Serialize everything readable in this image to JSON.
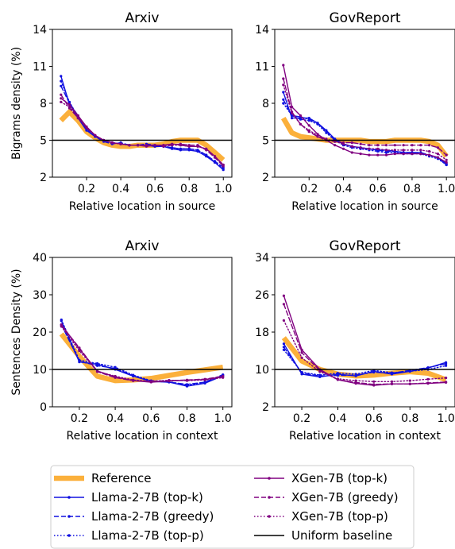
{
  "colors": {
    "reference": "#FBB03B",
    "llama": "#1010E0",
    "xgen": "#800080",
    "baseline": "#000000"
  },
  "legend": {
    "placement": "bottom-center",
    "entries": [
      {
        "label": "Reference",
        "style": "reference"
      },
      {
        "label": "Llama-2-7B (top-k)",
        "style": "llama_topk"
      },
      {
        "label": "Llama-2-7B (greedy)",
        "style": "llama_greedy"
      },
      {
        "label": "Llama-2-7B (top-p)",
        "style": "llama_topp"
      },
      {
        "label": "XGen-7B (top-k)",
        "style": "xgen_topk"
      },
      {
        "label": "XGen-7B (greedy)",
        "style": "xgen_greedy"
      },
      {
        "label": "XGen-7B (top-p)",
        "style": "xgen_topp"
      },
      {
        "label": "Uniform baseline",
        "style": "baseline"
      }
    ]
  },
  "chart_data": [
    {
      "type": "line",
      "title": "Arxiv",
      "xlabel": "Relative location in source",
      "ylabel": "Bigrams density (%)",
      "xlim": [
        0.0,
        1.05
      ],
      "ylim": [
        2,
        14
      ],
      "xticks": [
        "0.2",
        "0.4",
        "0.6",
        "0.8",
        "1.0"
      ],
      "yticks": [
        "2",
        "5",
        "8",
        "11",
        "14"
      ],
      "baseline": 5,
      "x": [
        0.05,
        0.1,
        0.15,
        0.2,
        0.25,
        0.3,
        0.35,
        0.4,
        0.45,
        0.5,
        0.55,
        0.6,
        0.65,
        0.7,
        0.75,
        0.8,
        0.85,
        0.9,
        0.95,
        1.0
      ],
      "series": [
        {
          "name": "Reference",
          "style": "reference",
          "values": [
            6.6,
            7.3,
            6.6,
            5.7,
            5.2,
            4.8,
            4.6,
            4.5,
            4.5,
            4.6,
            4.6,
            4.6,
            4.7,
            4.9,
            5.0,
            5.0,
            5.0,
            4.6,
            4.0,
            3.4
          ]
        },
        {
          "name": "Llama-2-7B (top-k)",
          "style": "llama_topk",
          "values": [
            10.2,
            7.9,
            6.8,
            5.8,
            5.3,
            5.0,
            4.8,
            4.7,
            4.6,
            4.6,
            4.6,
            4.5,
            4.5,
            4.3,
            4.2,
            4.2,
            4.1,
            3.7,
            3.2,
            2.6
          ]
        },
        {
          "name": "Llama-2-7B (greedy)",
          "style": "llama_greedy",
          "values": [
            9.4,
            8.0,
            7.0,
            6.0,
            5.3,
            4.9,
            4.7,
            4.8,
            4.6,
            4.6,
            4.7,
            4.6,
            4.5,
            4.4,
            4.3,
            4.3,
            4.2,
            3.8,
            3.3,
            2.8
          ]
        },
        {
          "name": "Llama-2-7B (top-p)",
          "style": "llama_topp",
          "values": [
            9.8,
            8.1,
            6.9,
            5.9,
            5.3,
            5.0,
            4.8,
            4.7,
            4.6,
            4.6,
            4.6,
            4.5,
            4.5,
            4.4,
            4.3,
            4.3,
            4.2,
            3.8,
            3.2,
            2.7
          ]
        },
        {
          "name": "XGen-7B (top-k)",
          "style": "xgen_topk",
          "values": [
            8.4,
            7.9,
            7.0,
            6.1,
            5.4,
            5.0,
            4.8,
            4.7,
            4.6,
            4.6,
            4.6,
            4.6,
            4.6,
            4.7,
            4.6,
            4.5,
            4.5,
            4.3,
            3.7,
            3.0
          ]
        },
        {
          "name": "XGen-7B (greedy)",
          "style": "xgen_greedy",
          "values": [
            8.7,
            7.6,
            6.8,
            6.0,
            5.4,
            5.0,
            4.8,
            4.7,
            4.6,
            4.6,
            4.5,
            4.6,
            4.5,
            4.6,
            4.7,
            4.6,
            4.6,
            4.2,
            3.6,
            2.9
          ]
        },
        {
          "name": "XGen-7B (top-p)",
          "style": "xgen_topp",
          "values": [
            8.1,
            7.7,
            6.9,
            6.0,
            5.4,
            5.0,
            4.8,
            4.7,
            4.6,
            4.6,
            4.6,
            4.6,
            4.6,
            4.6,
            4.6,
            4.5,
            4.5,
            4.3,
            3.7,
            3.0
          ]
        }
      ]
    },
    {
      "type": "line",
      "title": "GovReport",
      "xlabel": "Relative location in source",
      "ylabel": "",
      "xlim": [
        0.0,
        1.05
      ],
      "ylim": [
        2,
        14
      ],
      "xticks": [
        "0.2",
        "0.4",
        "0.6",
        "0.8",
        "1.0"
      ],
      "yticks": [
        "2",
        "5",
        "8",
        "11",
        "14"
      ],
      "baseline": 5,
      "x": [
        0.05,
        0.1,
        0.15,
        0.2,
        0.25,
        0.3,
        0.35,
        0.4,
        0.45,
        0.5,
        0.55,
        0.6,
        0.65,
        0.7,
        0.75,
        0.8,
        0.85,
        0.9,
        0.95,
        1.0
      ],
      "series": [
        {
          "name": "Reference",
          "style": "reference",
          "values": [
            6.8,
            5.6,
            5.3,
            5.2,
            5.1,
            5.0,
            5.0,
            5.0,
            5.0,
            5.0,
            4.9,
            4.9,
            4.9,
            5.0,
            5.0,
            5.0,
            5.0,
            4.9,
            4.6,
            3.7
          ]
        },
        {
          "name": "Llama-2-7B (top-k)",
          "style": "llama_topk",
          "values": [
            8.9,
            6.8,
            6.8,
            6.8,
            6.4,
            5.8,
            5.1,
            4.7,
            4.5,
            4.4,
            4.3,
            4.2,
            4.2,
            4.1,
            4.0,
            4.0,
            3.9,
            3.8,
            3.6,
            3.0
          ]
        },
        {
          "name": "Llama-2-7B (greedy)",
          "style": "llama_greedy",
          "values": [
            8.3,
            7.0,
            6.9,
            6.7,
            6.4,
            5.7,
            5.0,
            4.7,
            4.5,
            4.4,
            4.3,
            4.2,
            4.1,
            4.1,
            4.0,
            4.0,
            4.0,
            3.8,
            3.6,
            3.1
          ]
        },
        {
          "name": "Llama-2-7B (top-p)",
          "style": "llama_topp",
          "values": [
            8.0,
            7.0,
            6.7,
            6.6,
            6.3,
            5.6,
            5.0,
            4.6,
            4.4,
            4.3,
            4.2,
            4.1,
            4.0,
            4.0,
            3.9,
            3.9,
            3.9,
            3.7,
            3.5,
            3.0
          ]
        },
        {
          "name": "XGen-7B (top-k)",
          "style": "xgen_topk",
          "values": [
            11.1,
            7.7,
            7.0,
            6.2,
            5.5,
            5.0,
            4.6,
            4.3,
            4.0,
            3.9,
            3.8,
            3.8,
            3.8,
            3.9,
            3.9,
            3.9,
            3.9,
            3.8,
            3.6,
            3.2
          ]
        },
        {
          "name": "XGen-7B (greedy)",
          "style": "xgen_greedy",
          "values": [
            10.0,
            7.3,
            6.3,
            5.7,
            5.3,
            5.0,
            4.9,
            4.8,
            4.8,
            4.7,
            4.6,
            4.6,
            4.6,
            4.6,
            4.6,
            4.6,
            4.6,
            4.6,
            4.4,
            3.8
          ]
        },
        {
          "name": "XGen-7B (top-p)",
          "style": "xgen_topp",
          "values": [
            9.5,
            7.2,
            6.3,
            5.8,
            5.4,
            5.1,
            4.9,
            4.7,
            4.5,
            4.4,
            4.3,
            4.3,
            4.2,
            4.2,
            4.2,
            4.2,
            4.2,
            4.1,
            3.9,
            3.4
          ]
        }
      ]
    },
    {
      "type": "line",
      "title": "Arxiv",
      "xlabel": "Relative location in context",
      "ylabel": "Sentences Density (%)",
      "xlim": [
        0.05,
        1.05
      ],
      "ylim": [
        0,
        40
      ],
      "xticks": [
        "0.2",
        "0.4",
        "0.6",
        "0.8",
        "1.0"
      ],
      "yticks": [
        "0",
        "10",
        "20",
        "30",
        "40"
      ],
      "baseline": 10,
      "x": [
        0.1,
        0.2,
        0.3,
        0.4,
        0.5,
        0.6,
        0.7,
        0.8,
        0.9,
        1.0
      ],
      "series": [
        {
          "name": "Reference",
          "style": "reference",
          "values": [
            19.5,
            13.5,
            8.2,
            7.0,
            7.2,
            7.6,
            8.4,
            9.2,
            9.9,
            10.6
          ]
        },
        {
          "name": "Llama-2-7B (top-k)",
          "style": "llama_topk",
          "values": [
            23.0,
            12.0,
            11.4,
            10.0,
            8.2,
            6.8,
            6.6,
            5.5,
            6.3,
            8.3
          ]
        },
        {
          "name": "Llama-2-7B (greedy)",
          "style": "llama_greedy",
          "values": [
            22.0,
            12.2,
            11.0,
            10.3,
            8.3,
            6.9,
            6.6,
            6.0,
            6.6,
            8.6
          ]
        },
        {
          "name": "Llama-2-7B (top-p)",
          "style": "llama_topp",
          "values": [
            23.3,
            12.5,
            11.6,
            10.6,
            8.5,
            7.0,
            6.7,
            5.8,
            6.4,
            8.5
          ]
        },
        {
          "name": "XGen-7B (top-k)",
          "style": "xgen_topk",
          "values": [
            22.0,
            15.5,
            9.6,
            8.0,
            7.0,
            6.6,
            6.9,
            7.1,
            7.3,
            8.0
          ]
        },
        {
          "name": "XGen-7B (greedy)",
          "style": "xgen_greedy",
          "values": [
            21.8,
            15.8,
            9.4,
            7.8,
            7.0,
            6.8,
            7.0,
            7.2,
            7.4,
            8.2
          ]
        },
        {
          "name": "XGen-7B (top-p)",
          "style": "xgen_topp",
          "values": [
            21.5,
            15.0,
            9.5,
            8.2,
            7.2,
            6.8,
            7.1,
            7.0,
            7.2,
            7.8
          ]
        }
      ]
    },
    {
      "type": "line",
      "title": "GovReport",
      "xlabel": "Relative location in context",
      "ylabel": "",
      "xlim": [
        0.05,
        1.05
      ],
      "ylim": [
        2,
        34
      ],
      "xticks": [
        "0.2",
        "0.4",
        "0.6",
        "0.8",
        "1.0"
      ],
      "yticks": [
        "2",
        "10",
        "18",
        "26",
        "34"
      ],
      "baseline": 10,
      "x": [
        0.1,
        0.2,
        0.3,
        0.4,
        0.5,
        0.6,
        0.7,
        0.8,
        0.9,
        1.0
      ],
      "series": [
        {
          "name": "Reference",
          "style": "reference",
          "values": [
            16.8,
            11.8,
            10.0,
            9.0,
            8.6,
            8.8,
            9.2,
            9.5,
            9.2,
            7.8
          ]
        },
        {
          "name": "Llama-2-7B (top-k)",
          "style": "llama_topk",
          "values": [
            15.5,
            9.0,
            8.4,
            9.0,
            8.6,
            9.6,
            9.0,
            9.6,
            10.3,
            11.5
          ]
        },
        {
          "name": "Llama-2-7B (greedy)",
          "style": "llama_greedy",
          "values": [
            14.8,
            9.2,
            8.6,
            8.7,
            8.8,
            9.4,
            9.2,
            9.8,
            10.4,
            11.2
          ]
        },
        {
          "name": "Llama-2-7B (top-p)",
          "style": "llama_topp",
          "values": [
            14.2,
            9.4,
            8.8,
            9.2,
            9.0,
            9.8,
            9.3,
            9.6,
            10.0,
            10.8
          ]
        },
        {
          "name": "XGen-7B (top-k)",
          "style": "xgen_topk",
          "values": [
            25.8,
            14.2,
            10.0,
            7.8,
            7.0,
            6.6,
            6.9,
            6.9,
            7.0,
            7.2
          ]
        },
        {
          "name": "XGen-7B (greedy)",
          "style": "xgen_greedy",
          "values": [
            24.0,
            13.6,
            9.8,
            7.8,
            7.2,
            6.8,
            6.9,
            6.9,
            7.1,
            7.3
          ]
        },
        {
          "name": "XGen-7B (top-p)",
          "style": "xgen_topp",
          "values": [
            20.5,
            12.5,
            9.5,
            8.0,
            7.6,
            7.4,
            7.4,
            7.6,
            7.9,
            8.2
          ]
        }
      ]
    }
  ]
}
